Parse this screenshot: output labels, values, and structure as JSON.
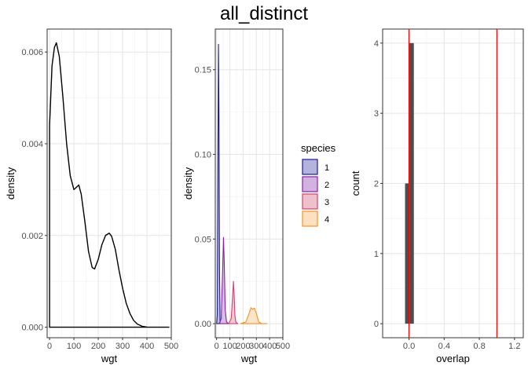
{
  "title": "all_distinct",
  "chart_data": [
    {
      "type": "line",
      "xlabel": "wgt",
      "ylabel": "density",
      "xlim": [
        -10,
        500
      ],
      "ylim": [
        -0.00023,
        0.0065
      ],
      "xticks": [
        0,
        100,
        200,
        300,
        400,
        500
      ],
      "yticks": [
        0,
        0.002,
        0.004,
        0.006
      ],
      "ytick_labels": [
        "0.000",
        "0.002",
        "0.004",
        "0.006"
      ],
      "grid": true,
      "series": [
        {
          "x": [
            0,
            10,
            20,
            28,
            40,
            55,
            70,
            85,
            100,
            110,
            120,
            130,
            145,
            160,
            175,
            185,
            200,
            215,
            230,
            245,
            255,
            270,
            285,
            300,
            315,
            330,
            345,
            360,
            380,
            400,
            420,
            450,
            480,
            490
          ],
          "y": [
            0.0044,
            0.0057,
            0.0061,
            0.0062,
            0.0059,
            0.005,
            0.004,
            0.0033,
            0.003,
            0.00305,
            0.0031,
            0.0029,
            0.0023,
            0.00165,
            0.0013,
            0.00127,
            0.00148,
            0.0018,
            0.002,
            0.00205,
            0.00198,
            0.0017,
            0.00125,
            0.00085,
            0.00052,
            0.0003,
            0.00015,
            7e-05,
            2e-05,
            3e-06,
            0.0,
            0.0,
            0.0,
            0.0
          ]
        }
      ]
    },
    {
      "type": "area",
      "xlabel": "wgt",
      "ylabel": "density",
      "xlim": [
        -10,
        500
      ],
      "ylim": [
        -0.0083,
        0.174
      ],
      "xticks": [
        0,
        100,
        200,
        300,
        400,
        500
      ],
      "yticks": [
        0,
        0.05,
        0.1,
        0.15
      ],
      "ytick_labels": [
        "0.00",
        "0.05",
        "0.10",
        "0.15"
      ],
      "grid": true,
      "legend": {
        "title": "species",
        "placement": "right"
      },
      "series": [
        {
          "name": "1",
          "color": "#1a1a99",
          "fill": "#b3b3dd",
          "x": [
            0,
            5,
            10,
            14,
            18,
            22,
            26,
            30
          ],
          "y": [
            0.0,
            0.005,
            0.1,
            0.165,
            0.12,
            0.03,
            0.002,
            0.0
          ]
        },
        {
          "name": "2",
          "color": "#8b1fa8",
          "fill": "#d2b3e0",
          "x": [
            20,
            35,
            45,
            52,
            58,
            65,
            75,
            90
          ],
          "y": [
            0.0,
            0.003,
            0.03,
            0.051,
            0.035,
            0.008,
            0.001,
            0.0
          ]
        },
        {
          "name": "3",
          "color": "#d1426e",
          "fill": "#edc0cc",
          "x": [
            90,
            110,
            120,
            127,
            132,
            138,
            145,
            160
          ],
          "y": [
            0.0,
            0.003,
            0.015,
            0.025,
            0.018,
            0.005,
            0.001,
            0.0
          ]
        },
        {
          "name": "4",
          "color": "#f5922a",
          "fill": "#fde0c0",
          "x": [
            180,
            220,
            240,
            260,
            272,
            285,
            300,
            318,
            340,
            380
          ],
          "y": [
            0.0,
            0.001,
            0.005,
            0.0095,
            0.0085,
            0.0092,
            0.006,
            0.001,
            0.0001,
            0.0
          ]
        }
      ]
    },
    {
      "type": "bar",
      "xlabel": "overlap",
      "ylabel": "count",
      "xlim": [
        -0.3,
        1.3
      ],
      "ylim": [
        -0.2,
        4.2
      ],
      "xticks": [
        0.0,
        0.4,
        0.8,
        1.2
      ],
      "xtick_labels": [
        "0.0",
        "0.4",
        "0.8",
        "1.2"
      ],
      "yticks": [
        0,
        1,
        2,
        3,
        4
      ],
      "ytick_labels": [
        "0",
        "1",
        "2",
        "3",
        "4"
      ],
      "grid": true,
      "bars": [
        {
          "x0": -0.045,
          "x1": 0.005,
          "value": 2
        },
        {
          "x0": 0.005,
          "x1": 0.055,
          "value": 4
        }
      ],
      "bar_color": "#4d4d4d",
      "vlines": [
        0.0,
        1.0
      ],
      "vline_color": "#ff0000"
    }
  ]
}
